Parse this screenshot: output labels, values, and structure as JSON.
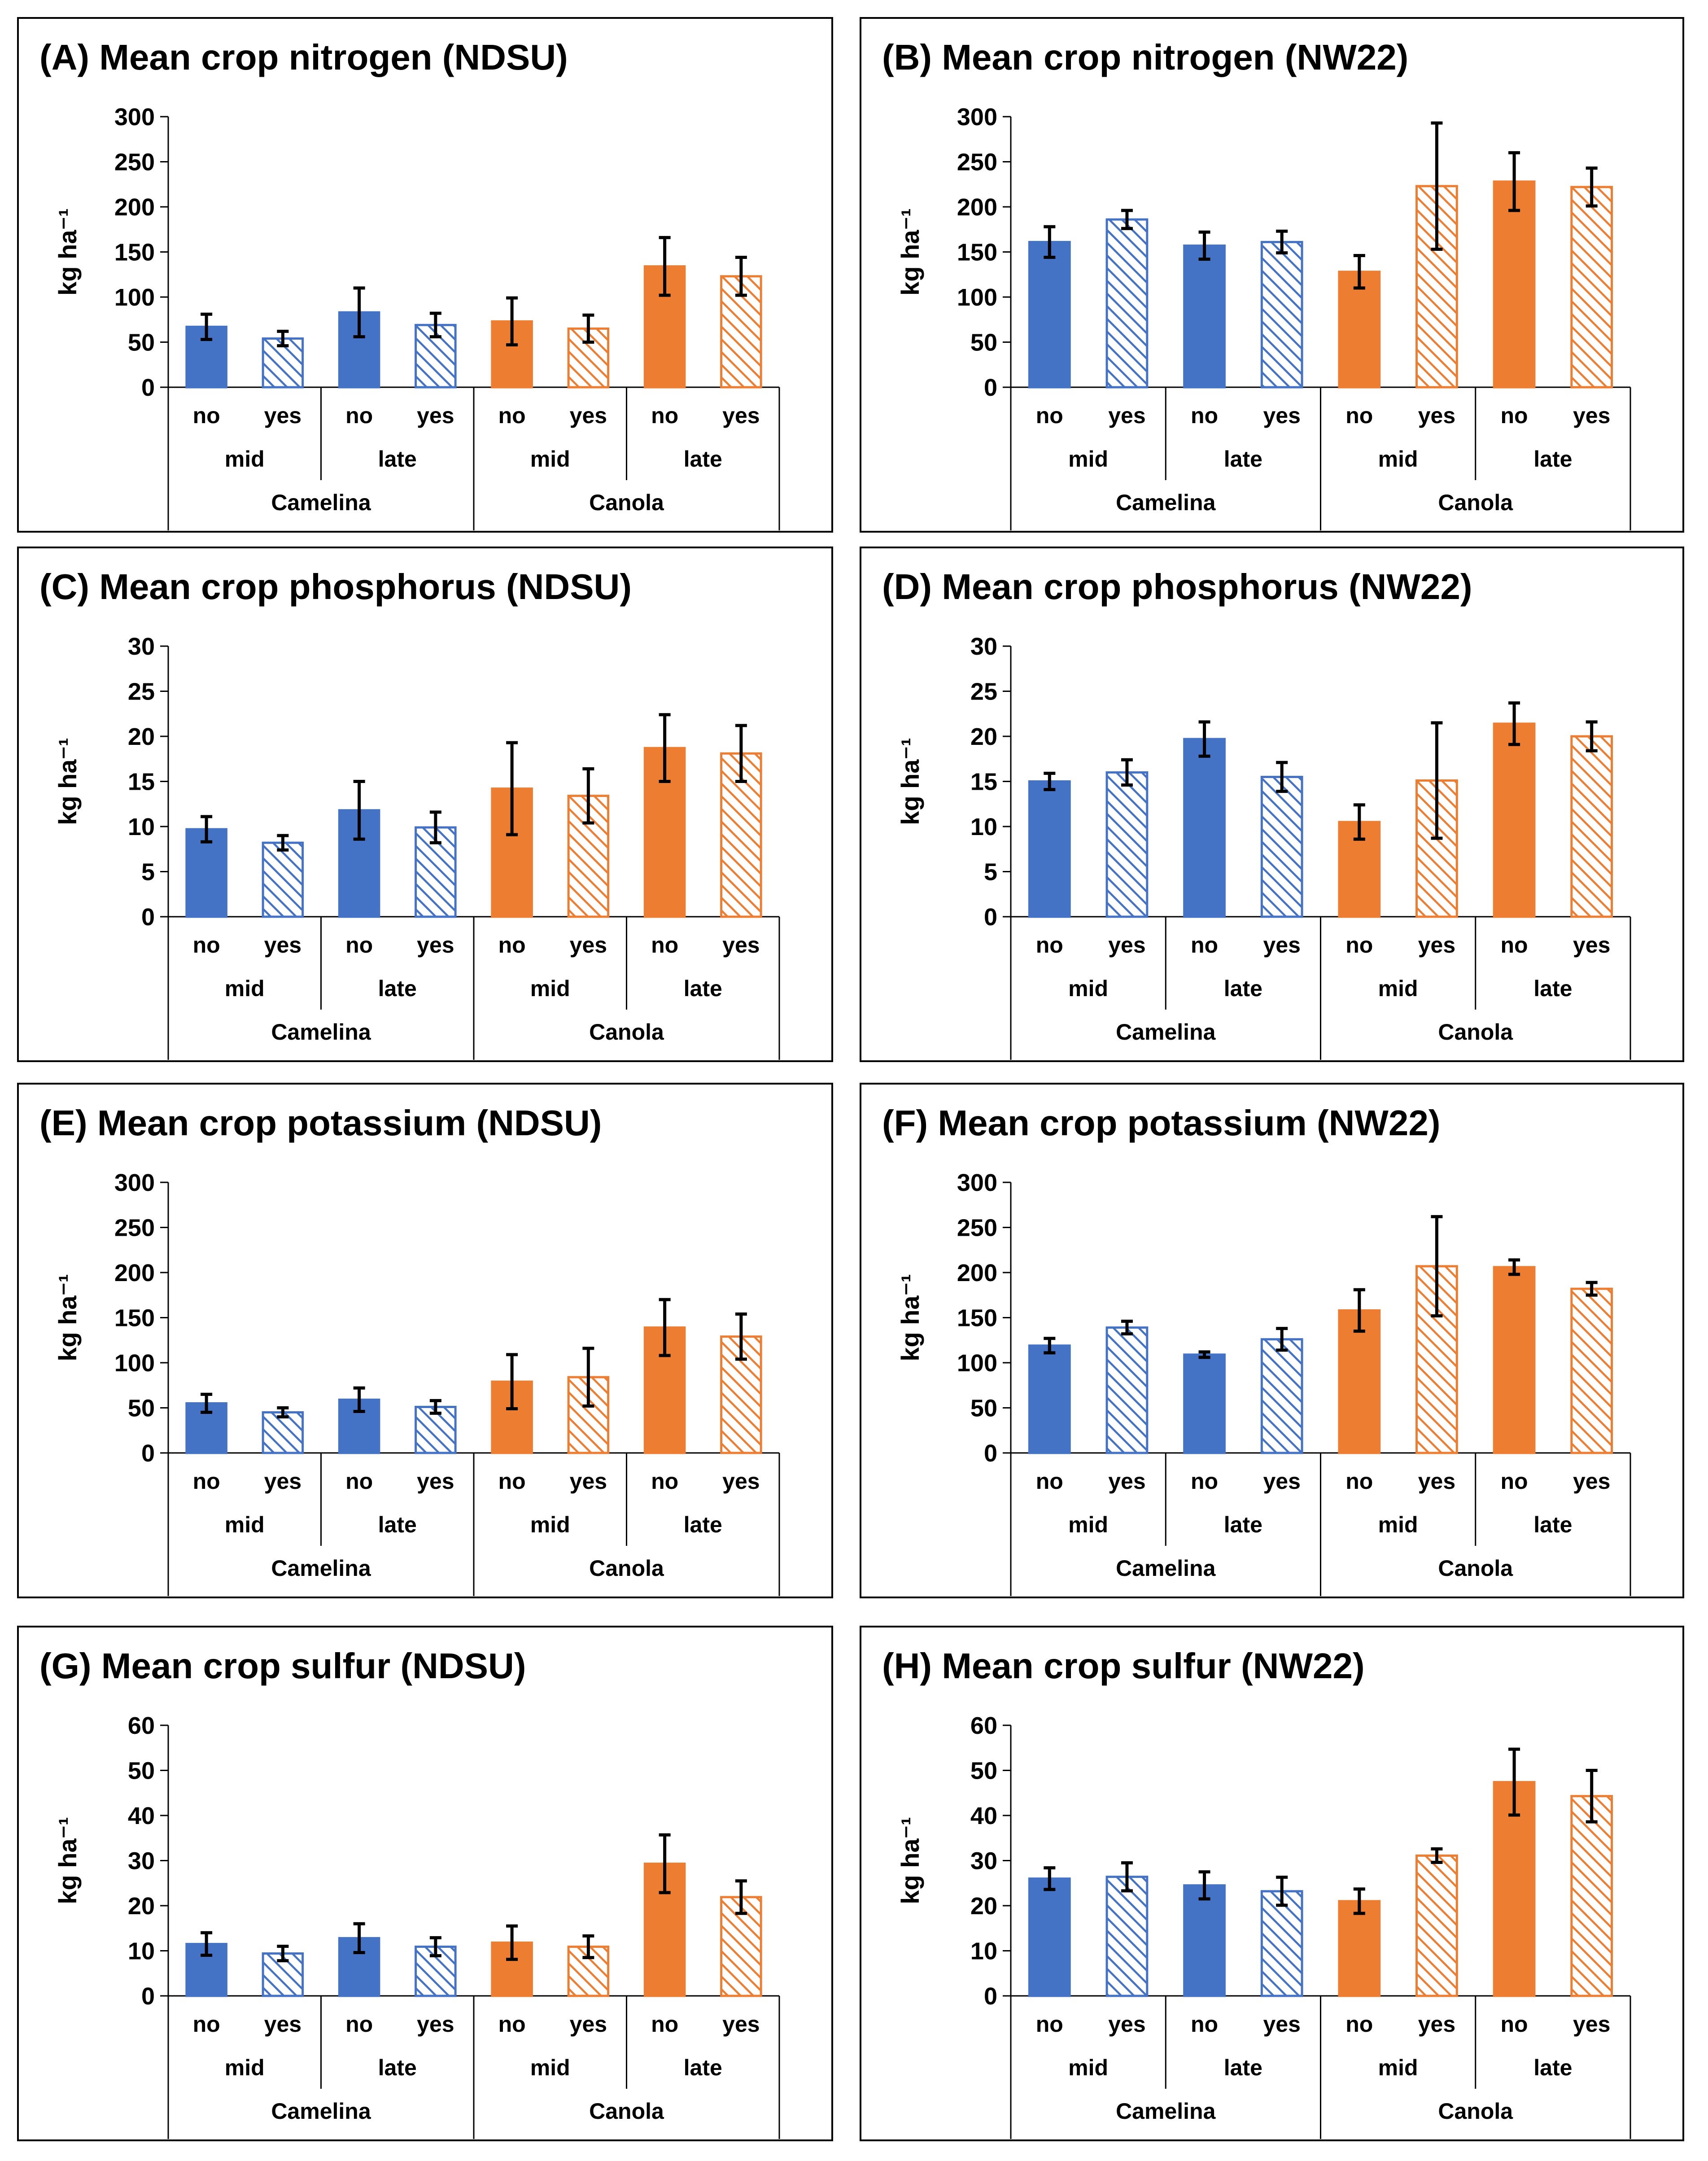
{
  "figure": {
    "colors": {
      "camelina": "#4472C4",
      "canola": "#ED7D31"
    },
    "pattern": "diagonal-hatch for 'yes' bars"
  },
  "chart_data": [
    {
      "id": "A",
      "type": "bar",
      "title": "(A) Mean crop nitrogen (NDSU)",
      "ylabel": "kg ha⁻¹",
      "ylim": [
        0,
        300
      ],
      "yticks": [
        "300",
        "250",
        "200",
        "150",
        "100",
        "50",
        "0"
      ],
      "categories": [
        "no",
        "yes",
        "no",
        "yes",
        "no",
        "yes",
        "no",
        "yes"
      ],
      "timing": [
        "mid",
        "late",
        "mid",
        "late"
      ],
      "crops": [
        "Camelina",
        "Canola"
      ],
      "values": [
        67,
        54,
        83,
        69,
        73,
        65,
        134,
        123
      ],
      "errors": [
        14,
        8,
        27,
        13,
        26,
        15,
        32,
        21
      ]
    },
    {
      "id": "B",
      "type": "bar",
      "title": "(B) Mean crop nitrogen (NW22)",
      "ylabel": "kg ha⁻¹",
      "ylim": [
        0,
        300
      ],
      "yticks": [
        "300",
        "250",
        "200",
        "150",
        "100",
        "50",
        "0"
      ],
      "categories": [
        "no",
        "yes",
        "no",
        "yes",
        "no",
        "yes",
        "no",
        "yes"
      ],
      "timing": [
        "mid",
        "late",
        "mid",
        "late"
      ],
      "crops": [
        "Camelina",
        "Canola"
      ],
      "values": [
        161,
        186,
        157,
        161,
        128,
        223,
        228,
        222
      ],
      "errors": [
        17,
        10,
        15,
        12,
        18,
        70,
        32,
        21
      ]
    },
    {
      "id": "C",
      "type": "bar",
      "title": "(C) Mean crop phosphorus (NDSU)",
      "ylabel": "kg ha⁻¹",
      "ylim": [
        0,
        30
      ],
      "yticks": [
        "30",
        "25",
        "20",
        "15",
        "10",
        "5",
        "0"
      ],
      "categories": [
        "no",
        "yes",
        "no",
        "yes",
        "no",
        "yes",
        "no",
        "yes"
      ],
      "timing": [
        "mid",
        "late",
        "mid",
        "late"
      ],
      "crops": [
        "Camelina",
        "Canola"
      ],
      "values": [
        9.7,
        8.2,
        11.8,
        9.9,
        14.2,
        13.4,
        18.7,
        18.1
      ],
      "errors": [
        1.4,
        0.8,
        3.2,
        1.7,
        5.1,
        3.0,
        3.7,
        3.1
      ]
    },
    {
      "id": "D",
      "type": "bar",
      "title": "(D) Mean crop phosphorus (NW22)",
      "ylabel": "kg ha⁻¹",
      "ylim": [
        0,
        30
      ],
      "yticks": [
        "30",
        "25",
        "20",
        "15",
        "10",
        "5",
        "0"
      ],
      "categories": [
        "no",
        "yes",
        "no",
        "yes",
        "no",
        "yes",
        "no",
        "yes"
      ],
      "timing": [
        "mid",
        "late",
        "mid",
        "late"
      ],
      "crops": [
        "Camelina",
        "Canola"
      ],
      "values": [
        15.0,
        16.0,
        19.7,
        15.5,
        10.5,
        15.1,
        21.4,
        20.0
      ],
      "errors": [
        0.9,
        1.4,
        1.9,
        1.6,
        1.9,
        6.4,
        2.3,
        1.6
      ]
    },
    {
      "id": "E",
      "type": "bar",
      "title": "(E) Mean crop potassium (NDSU)",
      "ylabel": "kg ha⁻¹",
      "ylim": [
        0,
        300
      ],
      "yticks": [
        "300",
        "250",
        "200",
        "150",
        "100",
        "50",
        "0"
      ],
      "categories": [
        "no",
        "yes",
        "no",
        "yes",
        "no",
        "yes",
        "no",
        "yes"
      ],
      "timing": [
        "mid",
        "late",
        "mid",
        "late"
      ],
      "crops": [
        "Camelina",
        "Canola"
      ],
      "values": [
        55,
        45,
        59,
        51,
        79,
        84,
        139,
        129
      ],
      "errors": [
        10,
        5,
        13,
        7,
        30,
        32,
        31,
        25
      ]
    },
    {
      "id": "F",
      "type": "bar",
      "title": "(F) Mean crop potassium (NW22)",
      "ylabel": "kg ha⁻¹",
      "ylim": [
        0,
        300
      ],
      "yticks": [
        "300",
        "250",
        "200",
        "150",
        "100",
        "50",
        "0"
      ],
      "categories": [
        "no",
        "yes",
        "no",
        "yes",
        "no",
        "yes",
        "no",
        "yes"
      ],
      "timing": [
        "mid",
        "late",
        "mid",
        "late"
      ],
      "crops": [
        "Camelina",
        "Canola"
      ],
      "values": [
        119,
        139,
        109,
        126,
        158,
        207,
        206,
        182
      ],
      "errors": [
        8,
        7,
        3,
        12,
        23,
        55,
        8,
        7
      ]
    },
    {
      "id": "G",
      "type": "bar",
      "title": "(G) Mean crop sulfur (NDSU)",
      "ylabel": "kg ha⁻¹",
      "ylim": [
        0,
        60
      ],
      "yticks": [
        "60",
        "50",
        "40",
        "30",
        "20",
        "10",
        "0"
      ],
      "categories": [
        "no",
        "yes",
        "no",
        "yes",
        "no",
        "yes",
        "no",
        "yes"
      ],
      "timing": [
        "mid",
        "late",
        "mid",
        "late"
      ],
      "crops": [
        "Camelina",
        "Canola"
      ],
      "values": [
        11.5,
        9.4,
        12.8,
        10.9,
        11.8,
        10.9,
        29.3,
        21.9
      ],
      "errors": [
        2.5,
        1.6,
        3.2,
        2.0,
        3.7,
        2.4,
        6.4,
        3.6
      ]
    },
    {
      "id": "H",
      "type": "bar",
      "title": "(H) Mean crop sulfur (NW22)",
      "ylabel": "kg ha⁻¹",
      "ylim": [
        0,
        60
      ],
      "yticks": [
        "60",
        "50",
        "40",
        "30",
        "20",
        "10",
        "0"
      ],
      "categories": [
        "no",
        "yes",
        "no",
        "yes",
        "no",
        "yes",
        "no",
        "yes"
      ],
      "timing": [
        "mid",
        "late",
        "mid",
        "late"
      ],
      "crops": [
        "Camelina",
        "Canola"
      ],
      "values": [
        26.0,
        26.4,
        24.5,
        23.2,
        21.0,
        31.1,
        47.4,
        44.3
      ],
      "errors": [
        2.4,
        3.1,
        3.0,
        3.1,
        2.7,
        1.5,
        7.3,
        5.7
      ]
    }
  ]
}
